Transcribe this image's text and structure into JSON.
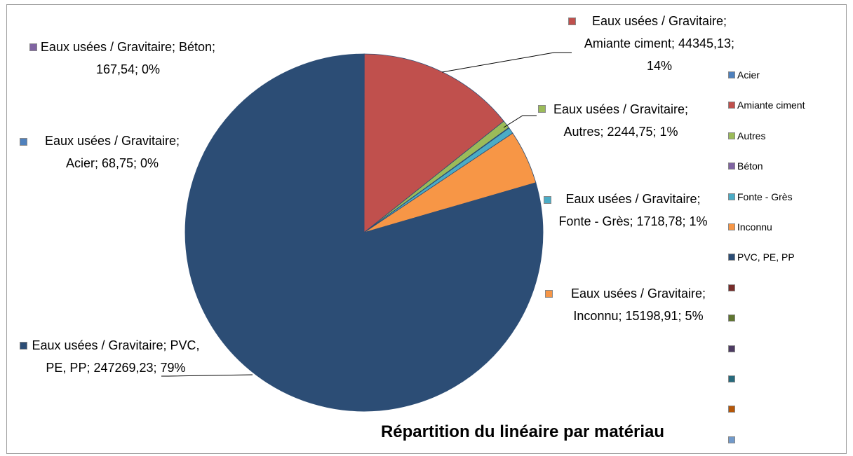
{
  "chart_data": {
    "type": "pie",
    "title": "Répartition du linéaire par matériau",
    "categories": [
      "Acier",
      "Amiante ciment",
      "Autres",
      "Béton",
      "Fonte - Grès",
      "Inconnu",
      "PVC, PE, PP",
      null,
      null,
      null,
      null,
      null,
      null
    ],
    "values": [
      68.75,
      44345.13,
      2244.75,
      167.54,
      1718.78,
      15198.91,
      247269.23,
      null,
      null,
      null,
      null,
      null,
      null
    ],
    "value_labels": [
      "Eaux usées / Gravitaire; Acier; 68,75; 0%",
      "Eaux usées / Gravitaire; Amiante ciment; 44345,13; 14%",
      "Eaux usées / Gravitaire; Autres; 2244,75; 1%",
      "Eaux usées / Gravitaire; Béton; 167,54; 0%",
      "Eaux usées / Gravitaire; Fonte - Grès; 1718,78; 1%",
      "Eaux usées / Gravitaire; Inconnu; 15198,91; 5%",
      "Eaux usées / Gravitaire; PVC, PE, PP; 247269,23; 79%",
      null,
      null,
      null,
      null,
      null,
      null
    ],
    "colors": [
      "#4f81bd",
      "#c0504d",
      "#9bbb59",
      "#8064a2",
      "#4bacc6",
      "#f79646",
      "#2c4d75",
      "#772c2a",
      "#5f7530",
      "#4d3b62",
      "#276a7c",
      "#b65708",
      "#729aca"
    ],
    "legend": "right"
  }
}
